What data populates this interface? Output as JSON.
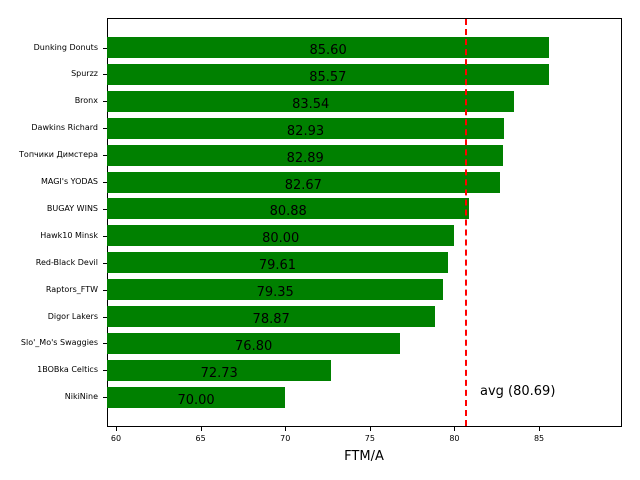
{
  "chart_data": {
    "type": "bar",
    "orientation": "horizontal",
    "title": "",
    "xlabel": "FTM/A",
    "ylabel": "",
    "xlim": [
      59.47,
      89.9
    ],
    "xticks": [
      60,
      65,
      70,
      75,
      80,
      85
    ],
    "grid": false,
    "bar_color": "#008000",
    "categories": [
      "Dunking Donuts",
      "Spurzz",
      "Bronx",
      "Dawkins Richard",
      "Топчики Димстера",
      "MAGI's YODAS",
      "BUGAY WINS",
      "Hawk10 Minsk",
      "Red-Black Devil",
      "Raptors_FTW",
      "Digor Lakers",
      "Slo'_Mo's Swaggies",
      "1BOBka Celtics",
      "NikiNine"
    ],
    "values": [
      85.6,
      85.57,
      83.54,
      82.93,
      82.89,
      82.67,
      80.88,
      80.0,
      79.61,
      79.35,
      78.87,
      76.8,
      72.73,
      70.0
    ],
    "value_labels": [
      "85.60",
      "85.57",
      "83.54",
      "82.93",
      "82.89",
      "82.67",
      "80.88",
      "80.00",
      "79.61",
      "79.35",
      "78.87",
      "76.80",
      "72.73",
      "70.00"
    ],
    "reference_line": {
      "value": 80.69,
      "label": "avg (80.69)",
      "color": "#ff0000",
      "style": "dashed"
    }
  }
}
